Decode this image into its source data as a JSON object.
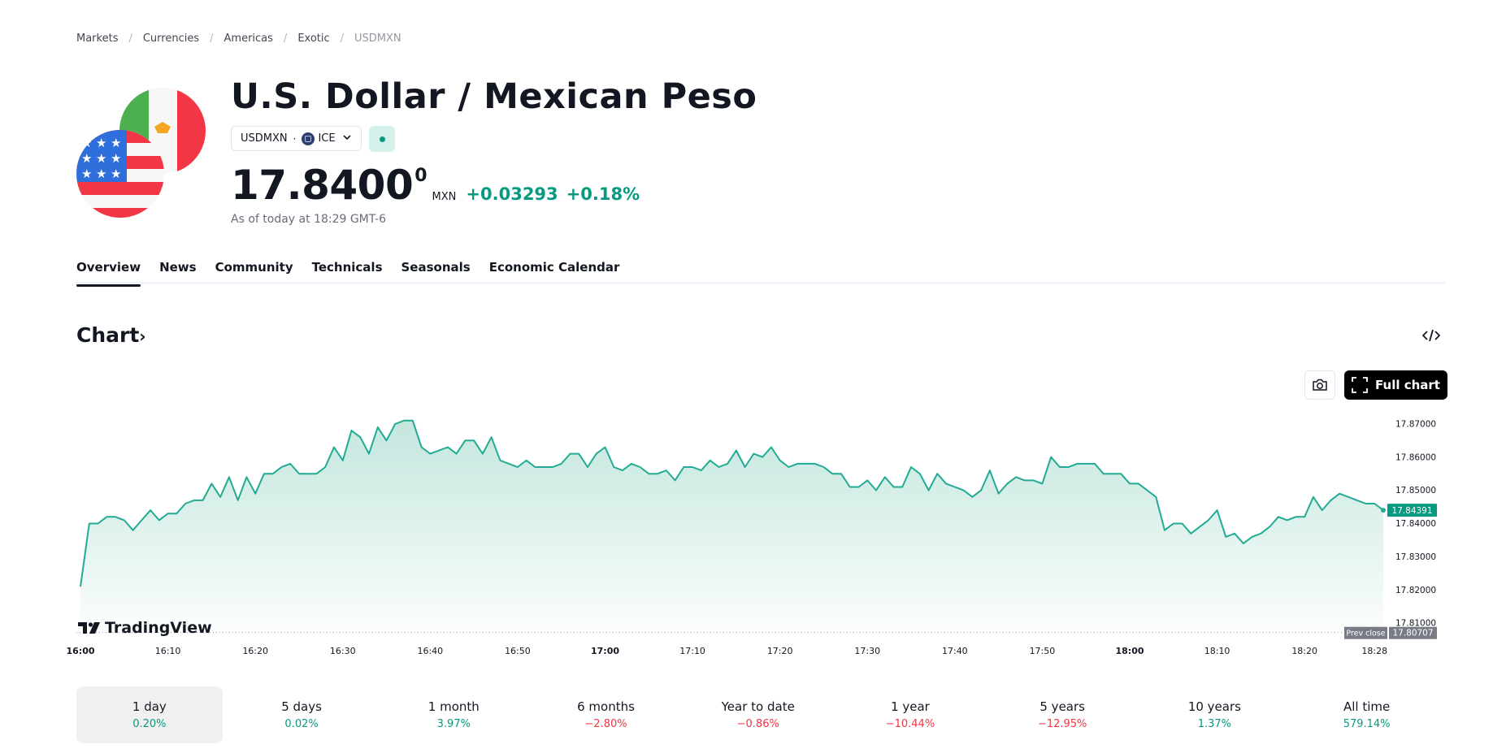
{
  "breadcrumb": [
    "Markets",
    "Currencies",
    "Americas",
    "Exotic",
    "USDMXN"
  ],
  "header": {
    "title": "U.S. Dollar / Mexican Peso",
    "symbol": "USDMXN",
    "exchange": "ICE",
    "price_main": "17.8400",
    "price_sup": "0",
    "currency": "MXN",
    "change": "+0.03293",
    "change_pct": "+0.18%",
    "as_of": "As of today at 18:29 GMT-6"
  },
  "tabs": [
    "Overview",
    "News",
    "Community",
    "Technicals",
    "Seasonals",
    "Economic Calendar"
  ],
  "chart_section": {
    "title": "Chart",
    "full_chart_label": "Full chart",
    "brand": "TradingView",
    "prev_close_label": "Prev close",
    "prev_close_value": "17.80707",
    "last_value_label": "17.84391"
  },
  "colors": {
    "positive": "#089981",
    "negative": "#f23645",
    "line": "#22ab94",
    "area": "#b9e2d8"
  },
  "chart_data": {
    "type": "area",
    "x_ticks": [
      "16:00",
      "16:10",
      "16:20",
      "16:30",
      "16:40",
      "16:50",
      "17:00",
      "17:10",
      "17:20",
      "17:30",
      "17:40",
      "17:50",
      "18:00",
      "18:10",
      "18:20",
      "18:28"
    ],
    "x_ticks_bold": [
      "16:00",
      "17:00",
      "18:00"
    ],
    "y_ticks": [
      "17.87000",
      "17.86000",
      "17.85000",
      "17.84000",
      "17.83000",
      "17.82000",
      "17.81000"
    ],
    "ylim": [
      17.807,
      17.8728
    ],
    "prev_close": 17.80707,
    "last": 17.84391,
    "x_minutes_range": [
      0,
      149
    ],
    "values": [
      17.8209,
      17.8399,
      17.8399,
      17.8419,
      17.8419,
      17.8409,
      17.8379,
      17.8409,
      17.8439,
      17.8409,
      17.8429,
      17.8429,
      17.8459,
      17.8469,
      17.8469,
      17.8519,
      17.8479,
      17.8539,
      17.8469,
      17.8539,
      17.8489,
      17.8549,
      17.8549,
      17.8569,
      17.8579,
      17.8549,
      17.8549,
      17.8549,
      17.8569,
      17.8629,
      17.8589,
      17.8679,
      17.8659,
      17.8609,
      17.8689,
      17.8649,
      17.8699,
      17.8709,
      17.8709,
      17.8629,
      17.8609,
      17.8619,
      17.8629,
      17.8609,
      17.8649,
      17.8649,
      17.8609,
      17.8659,
      17.8589,
      17.8579,
      17.8569,
      17.8589,
      17.8569,
      17.8569,
      17.8569,
      17.8579,
      17.8609,
      17.8609,
      17.8569,
      17.8609,
      17.8629,
      17.8569,
      17.8559,
      17.8579,
      17.8569,
      17.8549,
      17.8549,
      17.8559,
      17.8529,
      17.8569,
      17.8569,
      17.8559,
      17.8589,
      17.8569,
      17.8579,
      17.8619,
      17.8569,
      17.8609,
      17.8599,
      17.8629,
      17.8589,
      17.8569,
      17.8579,
      17.8579,
      17.8579,
      17.8569,
      17.8549,
      17.8549,
      17.8509,
      17.8509,
      17.8529,
      17.8499,
      17.8539,
      17.8509,
      17.8509,
      17.8569,
      17.8549,
      17.8499,
      17.8549,
      17.8519,
      17.8509,
      17.8499,
      17.8479,
      17.8499,
      17.8559,
      17.8489,
      17.8519,
      17.8539,
      17.8529,
      17.8529,
      17.8519,
      17.8599,
      17.8569,
      17.8569,
      17.8579,
      17.8579,
      17.8579,
      17.8549,
      17.8549,
      17.8549,
      17.8519,
      17.8519,
      17.8499,
      17.8479,
      17.8379,
      17.8399,
      17.8399,
      17.8369,
      17.8389,
      17.8409,
      17.8439,
      17.8359,
      17.8369,
      17.8339,
      17.8359,
      17.8369,
      17.8389,
      17.8419,
      17.8409,
      17.8419,
      17.8419,
      17.8479,
      17.8439,
      17.8469,
      17.8489,
      17.8479,
      17.8469,
      17.8459,
      17.8459,
      17.8439
    ]
  },
  "periods": [
    {
      "label": "1 day",
      "value": "0.20%",
      "sign": "pos"
    },
    {
      "label": "5 days",
      "value": "0.02%",
      "sign": "pos"
    },
    {
      "label": "1 month",
      "value": "3.97%",
      "sign": "pos"
    },
    {
      "label": "6 months",
      "value": "−2.80%",
      "sign": "neg"
    },
    {
      "label": "Year to date",
      "value": "−0.86%",
      "sign": "neg"
    },
    {
      "label": "1 year",
      "value": "−10.44%",
      "sign": "neg"
    },
    {
      "label": "5 years",
      "value": "−12.95%",
      "sign": "neg"
    },
    {
      "label": "10 years",
      "value": "1.37%",
      "sign": "pos"
    },
    {
      "label": "All time",
      "value": "579.14%",
      "sign": "pos"
    }
  ]
}
